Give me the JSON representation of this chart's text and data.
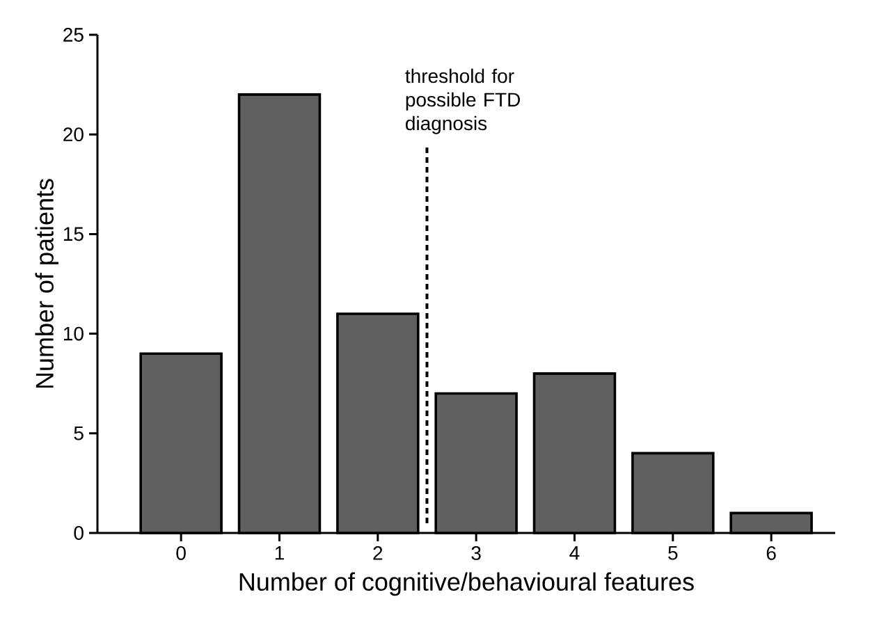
{
  "chart_data": {
    "type": "bar",
    "x": [
      0,
      1,
      2,
      3,
      4,
      5,
      6
    ],
    "values": [
      9,
      22,
      11,
      7,
      8,
      4,
      1
    ],
    "color": "#606060",
    "xlabel": "Number of cognitive/behavioural features",
    "ylabel": "Number of patients",
    "xlim": [
      -0.85,
      6.65
    ],
    "xticks": [
      0,
      1,
      2,
      3,
      4,
      5,
      6
    ],
    "ylim": [
      0,
      25
    ],
    "yticks": [
      0,
      5,
      10,
      15,
      20,
      25
    ],
    "ref_lines": [
      {
        "axis": "x",
        "value": 2.5,
        "label": "threshold for possible FTD diagnosis",
        "line_style": "dashed"
      }
    ]
  }
}
